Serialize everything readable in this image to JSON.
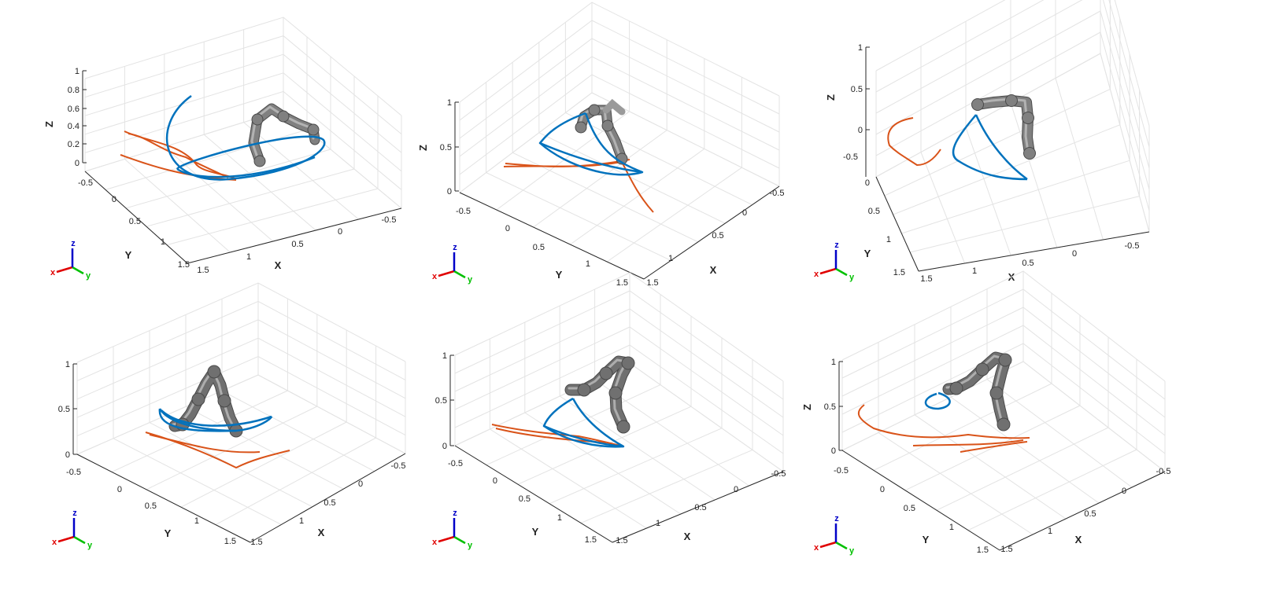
{
  "chart_data": [
    {
      "type": "3d-line",
      "panel": "top-left",
      "xlabel": "X",
      "ylabel": "Y",
      "zlabel": "Z",
      "xticks": [
        "-0.5",
        "0",
        "0.5",
        "1",
        "1.5"
      ],
      "yticks": [
        "-0.5",
        "0",
        "0.5",
        "1",
        "1.5"
      ],
      "zticks": [
        "0",
        "0.2",
        "0.4",
        "0.6",
        "0.8",
        "1"
      ],
      "series": [
        {
          "color": "#0072BD",
          "shape": "double arc sweep around robot base"
        },
        {
          "color": "#D95319",
          "shape": "demonstrated trajectory"
        }
      ],
      "robot_color": "#808080",
      "triad": {
        "x": "x",
        "y": "y",
        "z": "z"
      }
    },
    {
      "type": "3d-line",
      "panel": "top-middle",
      "xlabel": "X",
      "ylabel": "Y",
      "zlabel": "Z",
      "xticks": [
        "-0.5",
        "0",
        "0.5",
        "1",
        "1.5"
      ],
      "yticks": [
        "-0.5",
        "0",
        "0.5",
        "1",
        "1.5"
      ],
      "zticks": [
        "0",
        "0.5",
        "1"
      ],
      "series": [
        {
          "color": "#0072BD",
          "shape": "closed curved triangle"
        },
        {
          "color": "#D95319",
          "shape": "demonstrated trajectory"
        }
      ],
      "robot_color": "#808080",
      "triad": {
        "x": "x",
        "y": "y",
        "z": "z"
      }
    },
    {
      "type": "3d-line",
      "panel": "top-right",
      "xlabel": "X",
      "ylabel": "Y",
      "zlabel": "Z",
      "xticks": [
        "-0.5",
        "0",
        "0.5",
        "1",
        "1.5"
      ],
      "yticks": [
        "-0.5",
        "0",
        "0.5",
        "1",
        "1.5"
      ],
      "zticks": [
        "0",
        "0.5",
        "1"
      ],
      "series": [
        {
          "color": "#0072BD",
          "shape": "closed curved triangle"
        },
        {
          "color": "#D95319",
          "shape": "demonstrated trajectory"
        }
      ],
      "robot_color": "#808080",
      "triad": {
        "x": "x",
        "y": "y",
        "z": "z"
      }
    },
    {
      "type": "3d-line",
      "panel": "bottom-left",
      "xlabel": "X",
      "ylabel": "Y",
      "zlabel": "",
      "xticks": [
        "-0.5",
        "0",
        "0.5",
        "1",
        "1.5"
      ],
      "yticks": [
        "-0.5",
        "0",
        "0.5",
        "1",
        "1.5"
      ],
      "zticks": [
        "0",
        "0.5",
        "1"
      ],
      "series": [
        {
          "color": "#0072BD",
          "shape": "double arc sweep"
        },
        {
          "color": "#D95319",
          "shape": "demonstrated trajectory"
        }
      ],
      "robot_color": "#707070",
      "triad": {
        "x": "x",
        "y": "y",
        "z": "z"
      }
    },
    {
      "type": "3d-line",
      "panel": "bottom-middle",
      "xlabel": "X",
      "ylabel": "Y",
      "zlabel": "",
      "xticks": [
        "-0.5",
        "0",
        "0.5",
        "1",
        "1.5"
      ],
      "yticks": [
        "-0.5",
        "0",
        "0.5",
        "1",
        "1.5"
      ],
      "zticks": [
        "0",
        "0.5",
        "1"
      ],
      "series": [
        {
          "color": "#0072BD",
          "shape": "closed curved triangle"
        },
        {
          "color": "#D95319",
          "shape": "demonstrated trajectory"
        }
      ],
      "robot_color": "#707070",
      "triad": {
        "x": "x",
        "y": "y",
        "z": "z"
      }
    },
    {
      "type": "3d-line",
      "panel": "bottom-right",
      "xlabel": "X",
      "ylabel": "Y",
      "zlabel": "Z",
      "xticks": [
        "-0.5",
        "0",
        "0.5",
        "1",
        "1.5"
      ],
      "yticks": [
        "-0.5",
        "0",
        "0.5",
        "1",
        "1.5"
      ],
      "zticks": [
        "0",
        "0.5",
        "1"
      ],
      "series": [
        {
          "color": "#0072BD",
          "shape": "small circle"
        },
        {
          "color": "#D95319",
          "shape": "demonstrated trajectory"
        }
      ],
      "robot_color": "#707070",
      "triad": {
        "x": "x",
        "y": "y",
        "z": "z"
      }
    }
  ]
}
